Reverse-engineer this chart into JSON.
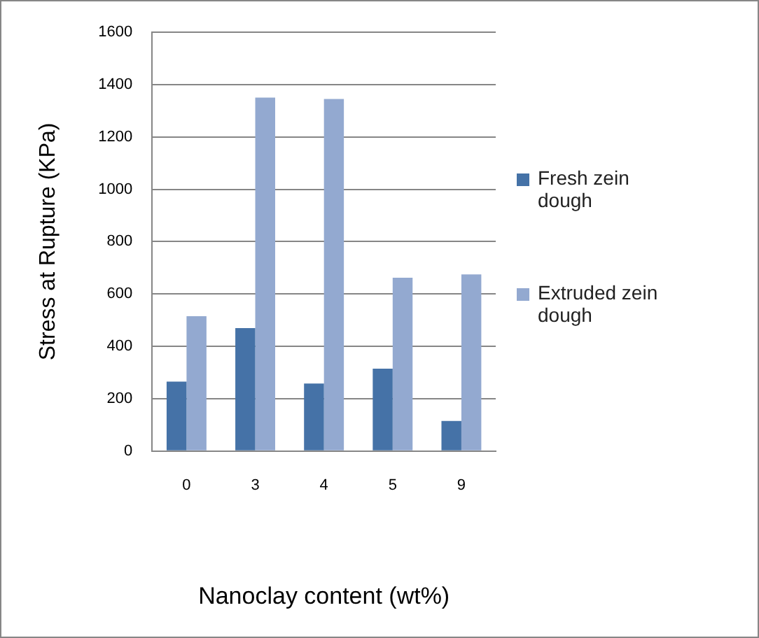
{
  "chart_data": {
    "type": "bar",
    "xlabel": "Nanoclay content (wt%)",
    "ylabel": "Stress at Rupture (KPa)",
    "categories": [
      "0",
      "3",
      "4",
      "5",
      "9"
    ],
    "series": [
      {
        "name": "Fresh zein dough",
        "color": "#4572a7",
        "values": [
          265,
          470,
          258,
          315,
          115
        ]
      },
      {
        "name": "Extruded zein dough",
        "color": "#93a9d0",
        "values": [
          515,
          1350,
          1345,
          662,
          675
        ]
      }
    ],
    "ylim": [
      0,
      1600
    ],
    "yticks": [
      0,
      200,
      400,
      600,
      800,
      1000,
      1200,
      1400,
      1600
    ],
    "grid": "y",
    "legend": "right"
  }
}
